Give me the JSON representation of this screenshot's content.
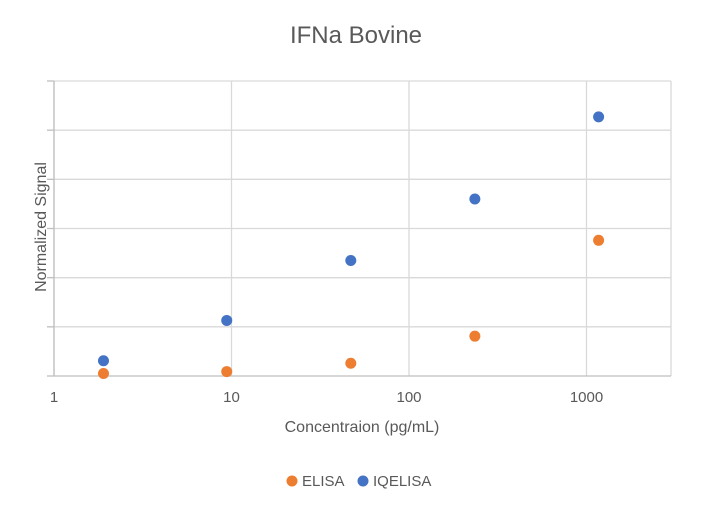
{
  "chart_data": {
    "type": "scatter",
    "title": "IFNa Bovine",
    "xlabel": "Concentraion (pg/mL)",
    "ylabel": "Normalized Signal",
    "x_scale": "log",
    "xlim": [
      1,
      3000
    ],
    "ylim": [
      0,
      6
    ],
    "x_ticks": [
      1,
      10,
      100,
      1000
    ],
    "x_tick_labels": [
      "1",
      "10",
      "100",
      "1000"
    ],
    "y_tick_labels_shown": false,
    "grid": true,
    "legend_position": "bottom",
    "series": [
      {
        "name": "ELISA",
        "color": "#ED7D31",
        "x": [
          1.9,
          9.4,
          47,
          235,
          1170
        ],
        "y": [
          0.05,
          0.09,
          0.26,
          0.81,
          2.76
        ]
      },
      {
        "name": "IQELISA",
        "color": "#4472C4",
        "x": [
          1.9,
          9.4,
          47,
          235,
          1170
        ],
        "y": [
          0.31,
          1.13,
          2.35,
          3.6,
          5.27
        ]
      }
    ]
  }
}
